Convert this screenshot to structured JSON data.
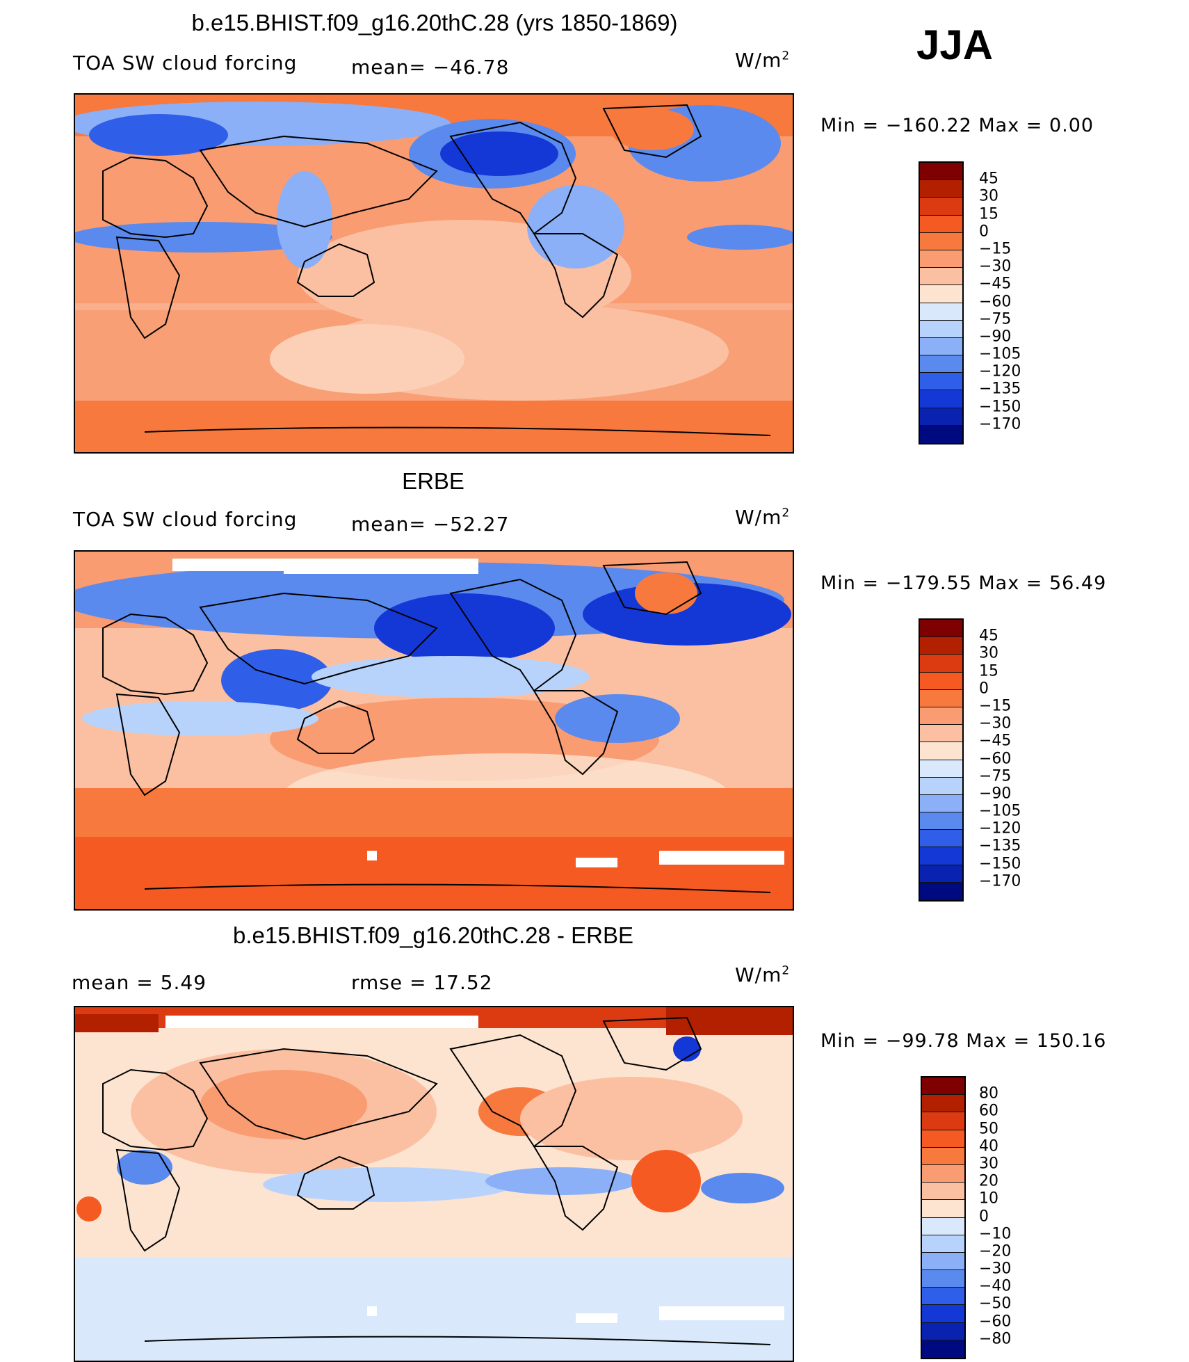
{
  "season": "JJA",
  "colors": {
    "cf_scale": [
      "#7f0000",
      "#b22000",
      "#dc3a10",
      "#f45a22",
      "#f7793e",
      "#f99c72",
      "#fbc0a2",
      "#fde4d1",
      "#d9e9fb",
      "#b8d3fb",
      "#8bb0f7",
      "#5a8aee",
      "#2f5fe8",
      "#1438d6",
      "#0a22b0",
      "#000a80"
    ],
    "diff_scale": [
      "#7f0000",
      "#b22000",
      "#dc3a10",
      "#f45a22",
      "#f7793e",
      "#f99c72",
      "#fbc0a2",
      "#fde4d1",
      "#d9e9fb",
      "#b8d3fb",
      "#8bb0f7",
      "#5a8aee",
      "#2f5fe8",
      "#1438d6",
      "#0a22b0",
      "#000a80"
    ],
    "land": "#000000"
  },
  "panels": [
    {
      "title": "b.e15.BHIST.f09_g16.20thC.28 (yrs 1850-1869)",
      "left_label": "TOA SW cloud forcing",
      "center_label": "mean= −46.78",
      "unit": "W/m",
      "unit_sup": "2",
      "minmax": "Min  =  −160.22  Max  =      0.00",
      "colorbar_labels": [
        "45",
        "30",
        "15",
        "0",
        "−15",
        "−30",
        "−45",
        "−60",
        "−75",
        "−90",
        "−105",
        "−120",
        "−135",
        "−150",
        "−170"
      ]
    },
    {
      "title": "ERBE",
      "left_label": "TOA SW cloud forcing",
      "center_label": "mean= −52.27",
      "unit": "W/m",
      "unit_sup": "2",
      "minmax": "Min  =  −179.55  Max  =    56.49",
      "colorbar_labels": [
        "45",
        "30",
        "15",
        "0",
        "−15",
        "−30",
        "−45",
        "−60",
        "−75",
        "−90",
        "−105",
        "−120",
        "−135",
        "−150",
        "−170"
      ]
    },
    {
      "title": "b.e15.BHIST.f09_g16.20thC.28 - ERBE",
      "left_label": "mean  =      5.49",
      "center_label": "rmse  =     17.52",
      "unit": "W/m",
      "unit_sup": "2",
      "minmax": "Min  =  −99.78  Max  =  150.16",
      "colorbar_labels": [
        "80",
        "60",
        "50",
        "40",
        "30",
        "20",
        "10",
        "0",
        "−10",
        "−20",
        "−30",
        "−40",
        "−50",
        "−60",
        "−80"
      ]
    }
  ],
  "chart_data": [
    {
      "type": "heatmap",
      "title": "b.e15.BHIST.f09_g16.20thC.28 (yrs 1850-1869)",
      "field": "TOA SW cloud forcing",
      "units": "W/m2",
      "season": "JJA",
      "mean": -46.78,
      "min": -160.22,
      "max": 0.0,
      "contour_levels": [
        45,
        30,
        15,
        0,
        -15,
        -30,
        -45,
        -60,
        -75,
        -90,
        -105,
        -120,
        -135,
        -150,
        -170
      ]
    },
    {
      "type": "heatmap",
      "title": "ERBE",
      "field": "TOA SW cloud forcing",
      "units": "W/m2",
      "season": "JJA",
      "mean": -52.27,
      "min": -179.55,
      "max": 56.49,
      "contour_levels": [
        45,
        30,
        15,
        0,
        -15,
        -30,
        -45,
        -60,
        -75,
        -90,
        -105,
        -120,
        -135,
        -150,
        -170
      ]
    },
    {
      "type": "heatmap",
      "title": "b.e15.BHIST.f09_g16.20thC.28 - ERBE",
      "units": "W/m2",
      "season": "JJA",
      "mean": 5.49,
      "rmse": 17.52,
      "min": -99.78,
      "max": 150.16,
      "contour_levels": [
        80,
        60,
        50,
        40,
        30,
        20,
        10,
        0,
        -10,
        -20,
        -30,
        -40,
        -50,
        -60,
        -80
      ]
    }
  ]
}
